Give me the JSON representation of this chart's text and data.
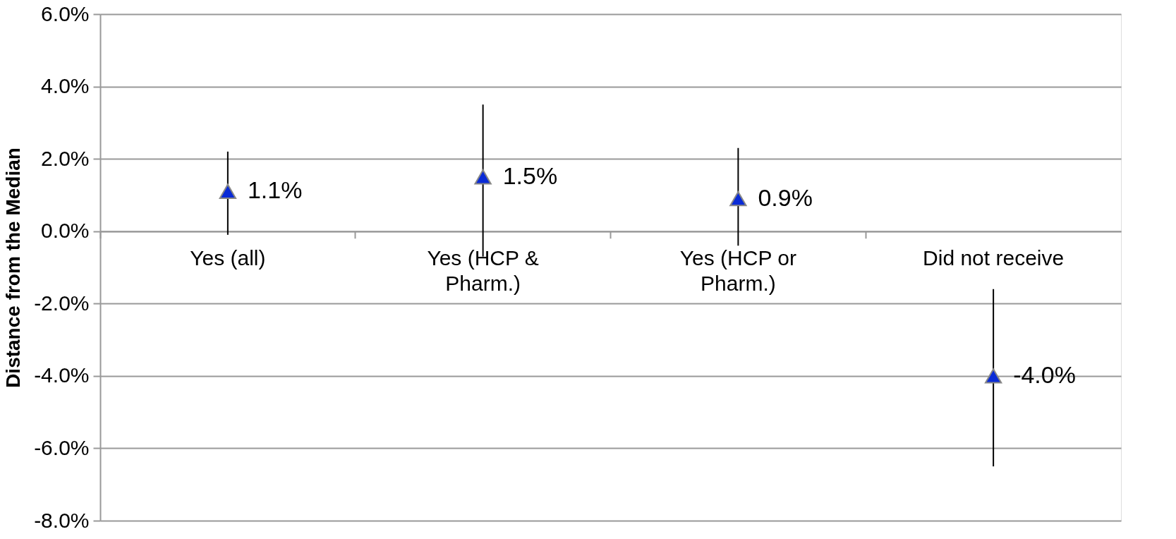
{
  "chart_data": {
    "type": "scatter",
    "ylabel": "Distance from the Median",
    "categories": [
      "Yes (all)",
      "Yes (HCP & Pharm.)",
      "Yes (HCP or Pharm.)",
      "Did not receive"
    ],
    "series": [
      {
        "color": "#0a2bd6",
        "values": [
          1.1,
          1.5,
          0.9,
          -4.0
        ],
        "errors": [
          [
            -0.1,
            2.2
          ],
          [
            -0.7,
            3.5
          ],
          [
            -0.4,
            2.3
          ],
          [
            -6.5,
            -1.6
          ]
        ],
        "value_labels": [
          "1.1%",
          "1.5%",
          "0.9%",
          "-4.0%"
        ]
      }
    ],
    "ylim": [
      -8,
      6
    ],
    "yticks": [
      {
        "value": -8,
        "label": "-8.0%"
      },
      {
        "value": -6,
        "label": "-6.0%"
      },
      {
        "value": -4,
        "label": "-4.0%"
      },
      {
        "value": -2,
        "label": "-2.0%"
      },
      {
        "value": 0,
        "label": "0.0%"
      },
      {
        "value": 2,
        "label": "2.0%"
      },
      {
        "value": 4,
        "label": "4.0%"
      },
      {
        "value": 6,
        "label": "6.0%"
      }
    ],
    "grid": "y",
    "marker": "triangle"
  }
}
